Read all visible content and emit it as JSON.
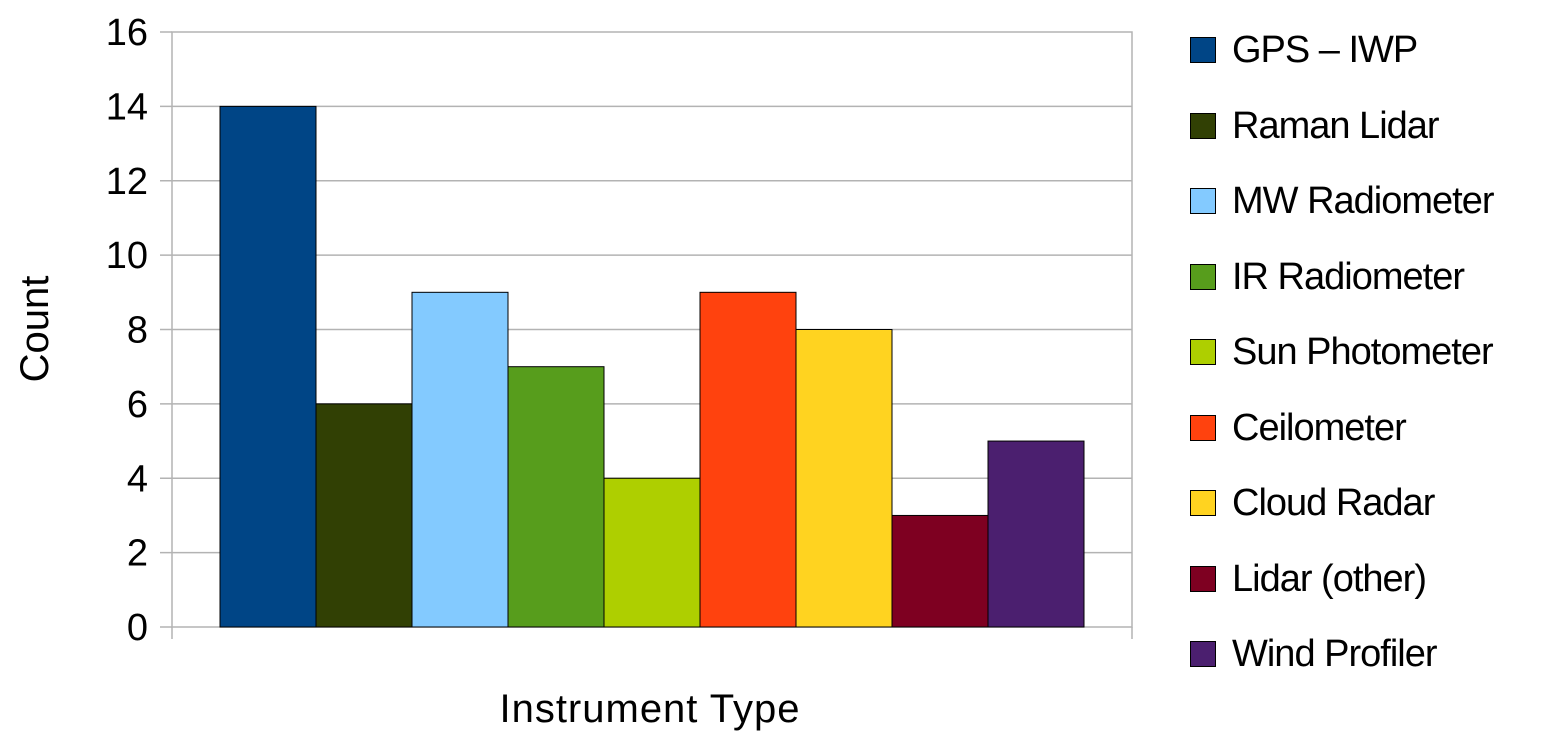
{
  "chart_data": {
    "type": "bar",
    "title": "",
    "xlabel": "Instrument Type",
    "ylabel": "Count",
    "ylim": [
      0,
      16
    ],
    "yticks": [
      0,
      2,
      4,
      6,
      8,
      10,
      12,
      14,
      16
    ],
    "grid": true,
    "legend_position": "right",
    "series": [
      {
        "name": "GPS – IWP",
        "value": 14,
        "color": "#004586"
      },
      {
        "name": "Raman Lidar",
        "value": 6,
        "color": "#314004"
      },
      {
        "name": "MW Radiometer",
        "value": 9,
        "color": "#83caff"
      },
      {
        "name": "IR Radiometer",
        "value": 7,
        "color": "#579d1c"
      },
      {
        "name": "Sun Photometer",
        "value": 4,
        "color": "#aecf00"
      },
      {
        "name": "Ceilometer",
        "value": 9,
        "color": "#ff420e"
      },
      {
        "name": "Cloud Radar",
        "value": 8,
        "color": "#ffd320"
      },
      {
        "name": "Lidar (other)",
        "value": 3,
        "color": "#7e0021"
      },
      {
        "name": "Wind Profiler",
        "value": 5,
        "color": "#4b1f6f"
      }
    ]
  }
}
